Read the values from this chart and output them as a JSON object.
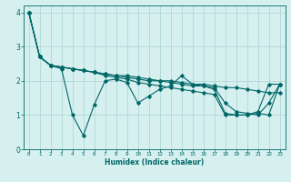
{
  "xlabel": "Humidex (Indice chaleur)",
  "bg_color": "#d6f0f0",
  "grid_color": "#b0d8d8",
  "line_color": "#006666",
  "xlim": [
    -0.5,
    23.5
  ],
  "ylim": [
    0,
    4.2
  ],
  "xtick_labels": [
    "0",
    "1",
    "2",
    "3",
    "4",
    "5",
    "6",
    "7",
    "8",
    "9",
    "10",
    "11",
    "12",
    "13",
    "14",
    "15",
    "16",
    "17",
    "18",
    "19",
    "20",
    "21",
    "22",
    "23"
  ],
  "xtick_positions": [
    0,
    1,
    2,
    3,
    4,
    5,
    6,
    7,
    8,
    9,
    10,
    11,
    12,
    13,
    14,
    15,
    16,
    17,
    18,
    19,
    20,
    21,
    22,
    23
  ],
  "yticks": [
    0,
    1,
    2,
    3,
    4
  ],
  "series": [
    [
      4.0,
      2.7,
      2.45,
      2.35,
      1.0,
      0.4,
      1.3,
      2.0,
      2.05,
      1.95,
      1.35,
      1.55,
      1.75,
      1.85,
      2.15,
      1.9,
      1.85,
      1.75,
      1.05,
      1.0,
      1.0,
      1.1,
      1.9,
      1.9
    ],
    [
      4.0,
      2.7,
      2.45,
      2.4,
      2.35,
      2.3,
      2.25,
      2.2,
      2.15,
      2.15,
      2.1,
      2.05,
      2.0,
      2.0,
      1.95,
      1.9,
      1.9,
      1.85,
      1.8,
      1.8,
      1.75,
      1.7,
      1.65,
      1.65
    ],
    [
      4.0,
      2.7,
      2.45,
      2.4,
      2.35,
      2.3,
      2.25,
      2.2,
      2.15,
      2.1,
      2.05,
      2.0,
      2.0,
      1.95,
      1.9,
      1.85,
      1.85,
      1.8,
      1.35,
      1.1,
      1.05,
      1.0,
      1.35,
      1.9
    ],
    [
      4.0,
      2.7,
      2.45,
      2.4,
      2.35,
      2.3,
      2.25,
      2.15,
      2.1,
      2.05,
      1.95,
      1.9,
      1.85,
      1.8,
      1.75,
      1.7,
      1.65,
      1.6,
      1.0,
      1.0,
      1.0,
      1.05,
      1.0,
      1.9
    ]
  ]
}
